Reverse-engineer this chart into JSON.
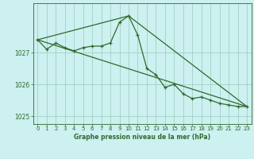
{
  "bg_color": "#cdf0f0",
  "line_color": "#2d6a2d",
  "grid_color": "#99ccbb",
  "tick_label_color": "#2d6a2d",
  "xlabel": "Graphe pression niveau de la mer (hPa)",
  "ylim": [
    1024.75,
    1028.55
  ],
  "xlim": [
    -0.5,
    23.5
  ],
  "yticks": [
    1025,
    1026,
    1027
  ],
  "xticks": [
    0,
    1,
    2,
    3,
    4,
    5,
    6,
    7,
    8,
    9,
    10,
    11,
    12,
    13,
    14,
    15,
    16,
    17,
    18,
    19,
    20,
    21,
    22,
    23
  ],
  "series_x": [
    0,
    1,
    2,
    3,
    4,
    5,
    6,
    7,
    8,
    9,
    10,
    11,
    12,
    13,
    14,
    15,
    16,
    17,
    18,
    19,
    20,
    21,
    22,
    23
  ],
  "series_y": [
    1027.4,
    1027.1,
    1027.3,
    1027.15,
    1027.05,
    1027.15,
    1027.2,
    1027.2,
    1027.3,
    1027.95,
    1028.15,
    1027.55,
    1026.5,
    1026.3,
    1025.9,
    1026.0,
    1025.7,
    1025.55,
    1025.6,
    1025.5,
    1025.4,
    1025.35,
    1025.3,
    1025.3
  ],
  "trend1_x": [
    0,
    23
  ],
  "trend1_y": [
    1027.4,
    1025.3
  ],
  "trend2_x": [
    0,
    10,
    23
  ],
  "trend2_y": [
    1027.4,
    1028.15,
    1025.3
  ]
}
